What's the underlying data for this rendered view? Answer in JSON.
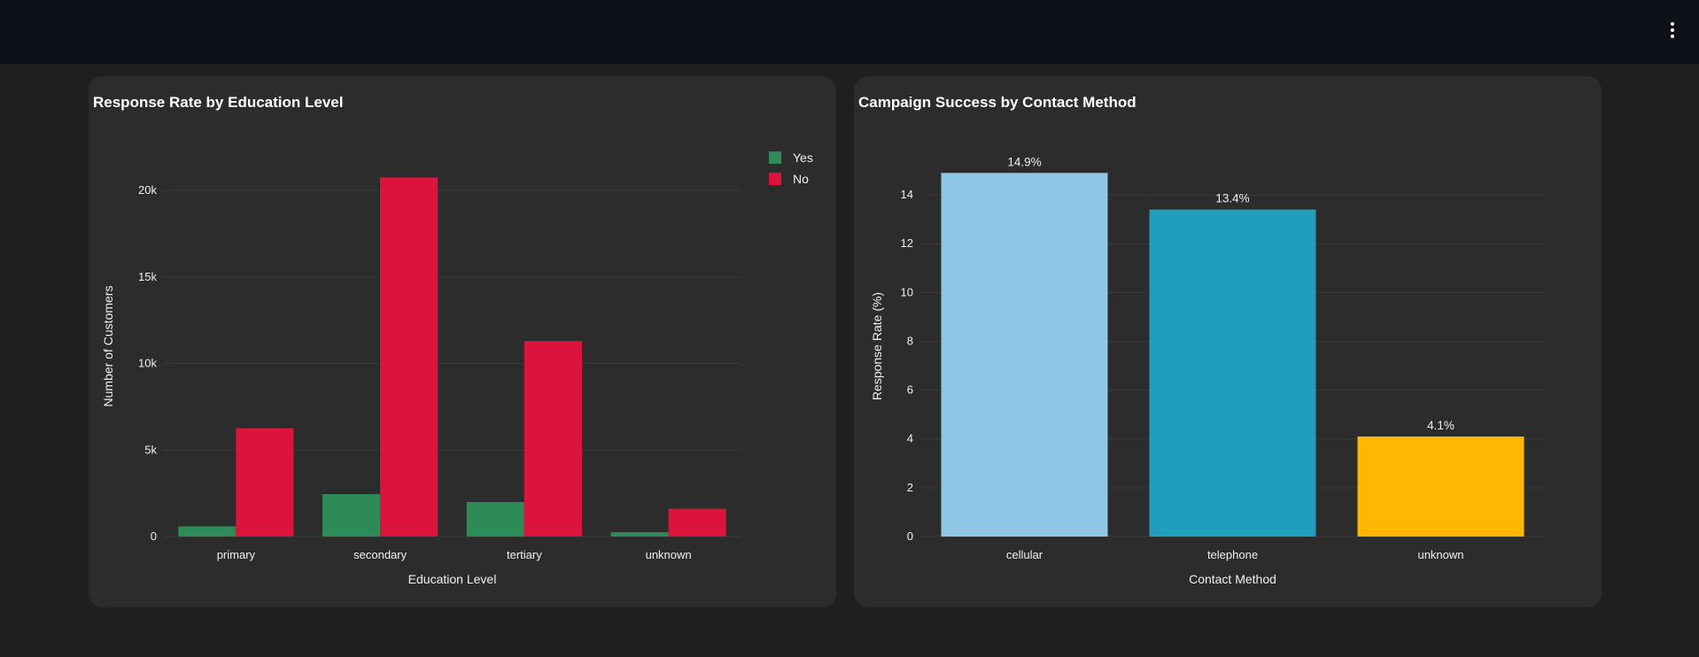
{
  "colors": {
    "yes": "#2e8b57",
    "no": "#dc143c",
    "bar_blue_light": "#8ec8e6",
    "bar_blue": "#219ebc",
    "bar_amber": "#ffb703"
  },
  "menu_icon": "kebab-menu-icon",
  "chart_data": [
    {
      "type": "bar",
      "title": "Response Rate by Education Level",
      "xlabel": "Education Level",
      "ylabel": "Number of Customers",
      "categories": [
        "primary",
        "secondary",
        "tertiary",
        "unknown"
      ],
      "series": [
        {
          "name": "Yes",
          "values": [
            591,
            2450,
            1996,
            252
          ]
        },
        {
          "name": "No",
          "values": [
            6260,
            20752,
            11305,
            1605
          ]
        }
      ],
      "ylim": [
        0,
        22000
      ],
      "yticks": [
        0,
        5000,
        10000,
        15000,
        20000
      ],
      "ytick_labels": [
        "0",
        "5k",
        "10k",
        "15k",
        "20k"
      ],
      "grid": true,
      "legend_position": "top-right"
    },
    {
      "type": "bar",
      "title": "Campaign Success by Contact Method",
      "xlabel": "Contact Method",
      "ylabel": "Response Rate (%)",
      "categories": [
        "cellular",
        "telephone",
        "unknown"
      ],
      "values": [
        14.9,
        13.4,
        4.1
      ],
      "data_labels": [
        "14.9%",
        "13.4%",
        "4.1%"
      ],
      "ylim": [
        0,
        15.6
      ],
      "yticks": [
        0,
        2,
        4,
        6,
        8,
        10,
        12,
        14
      ],
      "ytick_labels": [
        "0",
        "2",
        "4",
        "6",
        "8",
        "10",
        "12",
        "14"
      ],
      "grid": true
    }
  ]
}
